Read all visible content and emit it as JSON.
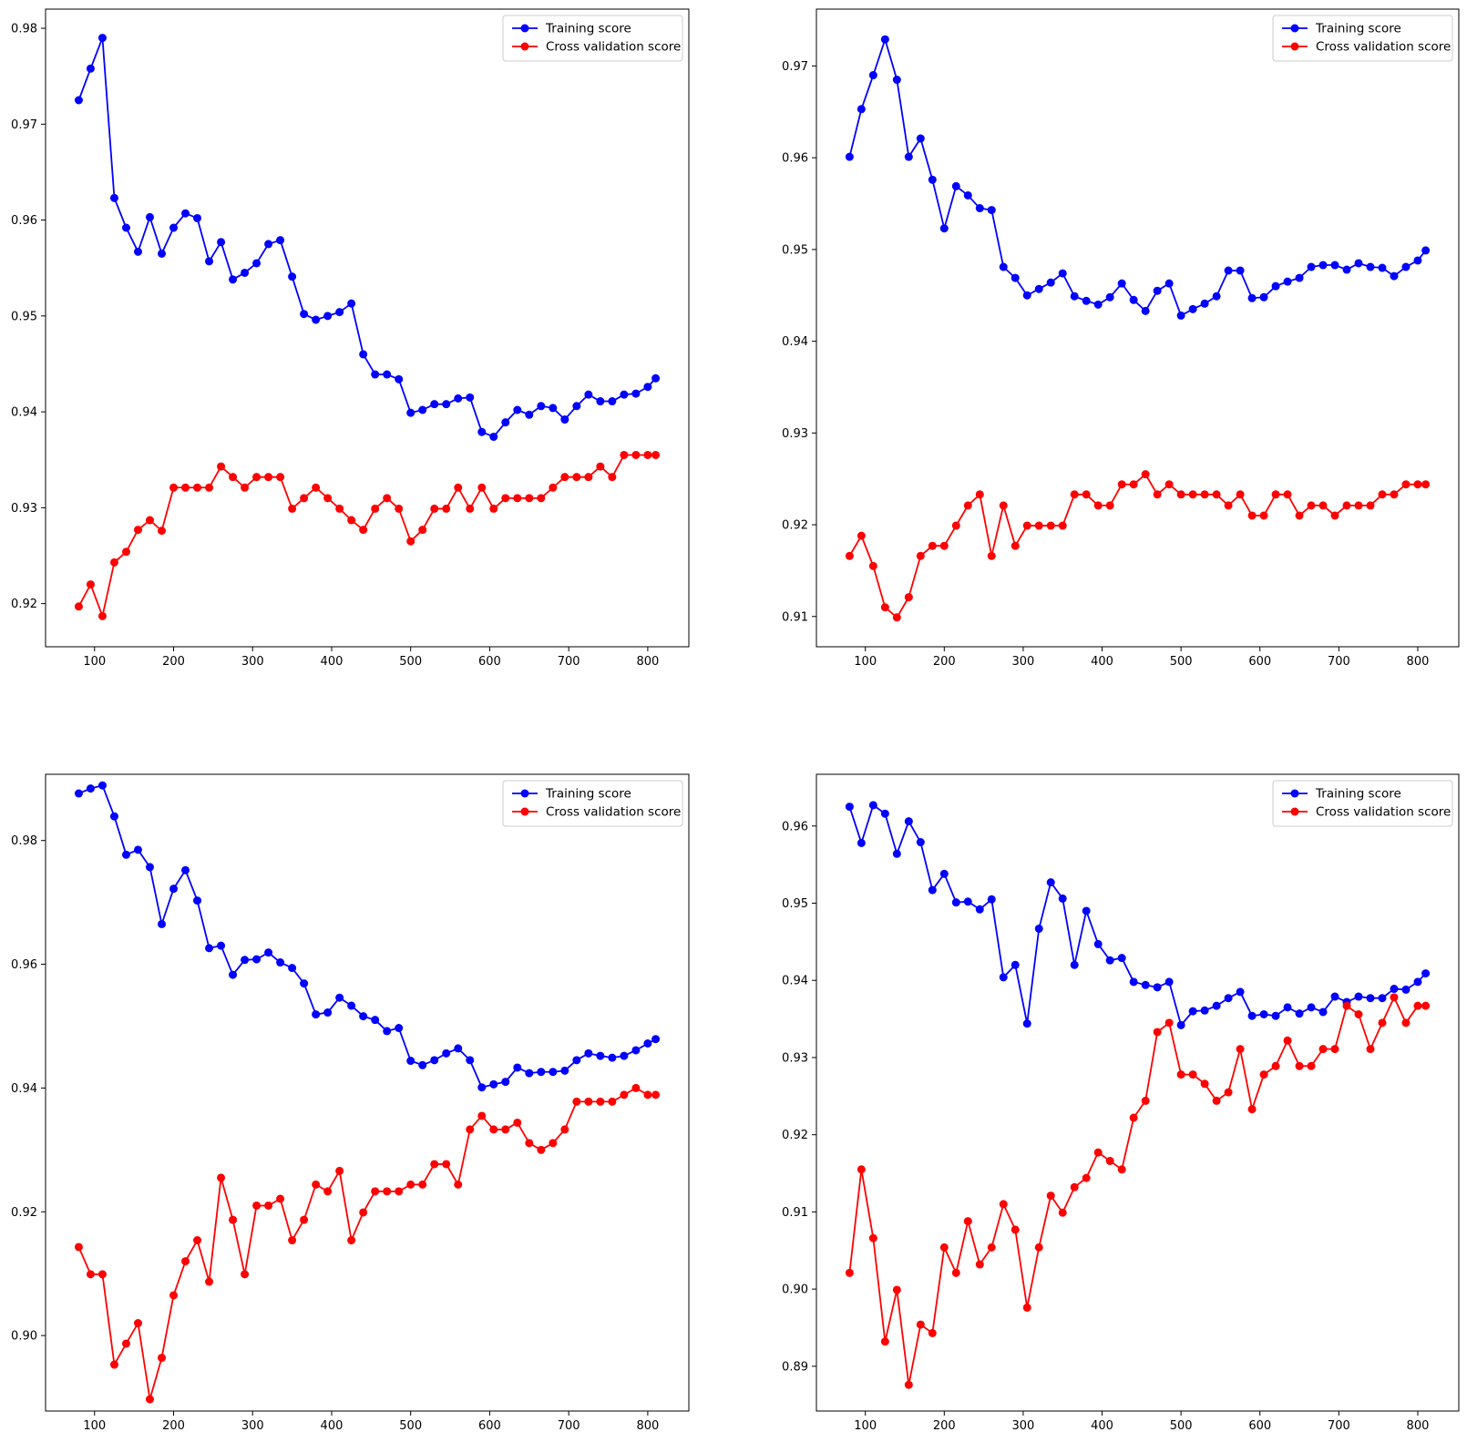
{
  "chart_data": [
    {
      "type": "line",
      "x": [
        80,
        95,
        110,
        125,
        140,
        155,
        170,
        185,
        200,
        215,
        230,
        245,
        260,
        275,
        290,
        305,
        320,
        335,
        350,
        365,
        380,
        395,
        410,
        425,
        440,
        455,
        470,
        485,
        500,
        515,
        530,
        545,
        560,
        575,
        590,
        605,
        620,
        635,
        650,
        665,
        680,
        695,
        710,
        725,
        740,
        755,
        770,
        785,
        800,
        810
      ],
      "series": [
        {
          "name": "Training score",
          "color": "#0000ff",
          "values": [
            0.9725,
            0.9758,
            0.979,
            0.9623,
            0.9592,
            0.9567,
            0.9603,
            0.9565,
            0.9592,
            0.9607,
            0.9602,
            0.9557,
            0.9577,
            0.9538,
            0.9545,
            0.9555,
            0.9575,
            0.9579,
            0.9541,
            0.9502,
            0.9496,
            0.95,
            0.9504,
            0.9513,
            0.946,
            0.9439,
            0.9439,
            0.9434,
            0.9399,
            0.9402,
            0.9408,
            0.9408,
            0.9414,
            0.9415,
            0.9379,
            0.9374,
            0.9389,
            0.9402,
            0.9397,
            0.9406,
            0.9404,
            0.9392,
            0.9406,
            0.9418,
            0.9411,
            0.9411,
            0.9418,
            0.9419,
            0.9426,
            0.9435
          ]
        },
        {
          "name": "Cross validation score",
          "color": "#ff0000",
          "values": [
            0.9197,
            0.922,
            0.9187,
            0.9243,
            0.9254,
            0.9277,
            0.9287,
            0.9276,
            0.9321,
            0.9321,
            0.9321,
            0.9321,
            0.9343,
            0.9332,
            0.9321,
            0.9332,
            0.9332,
            0.9332,
            0.9299,
            0.931,
            0.9321,
            0.931,
            0.9299,
            0.9287,
            0.9277,
            0.9299,
            0.931,
            0.9299,
            0.9265,
            0.9277,
            0.9299,
            0.9299,
            0.9321,
            0.9299,
            0.9321,
            0.9299,
            0.931,
            0.931,
            0.931,
            0.931,
            0.9321,
            0.9332,
            0.9332,
            0.9332,
            0.9343,
            0.9332,
            0.9355,
            0.9355,
            0.9355,
            0.9355
          ]
        }
      ],
      "xlim": [
        38,
        852
      ],
      "ylim": [
        0.9155,
        0.982
      ],
      "xticks": [
        100,
        200,
        300,
        400,
        500,
        600,
        700,
        800
      ],
      "xtick_labels": [
        "100",
        "200",
        "300",
        "400",
        "500",
        "600",
        "700",
        "800"
      ],
      "yticks": [
        0.92,
        0.93,
        0.94,
        0.95,
        0.96,
        0.97,
        0.98
      ],
      "ytick_labels": [
        "0.92",
        "0.93",
        "0.94",
        "0.95",
        "0.96",
        "0.97",
        "0.98"
      ],
      "legend": "upper right",
      "grid": false
    },
    {
      "type": "line",
      "x": [
        80,
        95,
        110,
        125,
        140,
        155,
        170,
        185,
        200,
        215,
        230,
        245,
        260,
        275,
        290,
        305,
        320,
        335,
        350,
        365,
        380,
        395,
        410,
        425,
        440,
        455,
        470,
        485,
        500,
        515,
        530,
        545,
        560,
        575,
        590,
        605,
        620,
        635,
        650,
        665,
        680,
        695,
        710,
        725,
        740,
        755,
        770,
        785,
        800,
        810
      ],
      "series": [
        {
          "name": "Training score",
          "color": "#0000ff",
          "values": [
            0.9601,
            0.9653,
            0.969,
            0.9729,
            0.9685,
            0.9601,
            0.9621,
            0.9576,
            0.9523,
            0.9569,
            0.9559,
            0.9545,
            0.9543,
            0.9481,
            0.9469,
            0.945,
            0.9457,
            0.9464,
            0.9474,
            0.9449,
            0.9444,
            0.944,
            0.9448,
            0.9463,
            0.9445,
            0.9433,
            0.9455,
            0.9463,
            0.9428,
            0.9435,
            0.9441,
            0.9449,
            0.9477,
            0.9477,
            0.9447,
            0.9448,
            0.946,
            0.9465,
            0.9469,
            0.9481,
            0.9483,
            0.9483,
            0.9478,
            0.9485,
            0.9481,
            0.948,
            0.9471,
            0.9481,
            0.9488,
            0.9499
          ]
        },
        {
          "name": "Cross validation score",
          "color": "#ff0000",
          "values": [
            0.9166,
            0.9188,
            0.9155,
            0.911,
            0.9099,
            0.9121,
            0.9166,
            0.9177,
            0.9177,
            0.9199,
            0.9221,
            0.9233,
            0.9166,
            0.9221,
            0.9177,
            0.9199,
            0.9199,
            0.9199,
            0.9199,
            0.9233,
            0.9233,
            0.9221,
            0.9221,
            0.9244,
            0.9244,
            0.9255,
            0.9233,
            0.9244,
            0.9233,
            0.9233,
            0.9233,
            0.9233,
            0.9221,
            0.9233,
            0.921,
            0.921,
            0.9233,
            0.9233,
            0.921,
            0.9221,
            0.9221,
            0.921,
            0.9221,
            0.9221,
            0.9221,
            0.9233,
            0.9233,
            0.9244,
            0.9244,
            0.9244
          ]
        }
      ],
      "xlim": [
        38,
        852
      ],
      "ylim": [
        0.9067,
        0.9762
      ],
      "xticks": [
        100,
        200,
        300,
        400,
        500,
        600,
        700,
        800
      ],
      "xtick_labels": [
        "100",
        "200",
        "300",
        "400",
        "500",
        "600",
        "700",
        "800"
      ],
      "yticks": [
        0.91,
        0.92,
        0.93,
        0.94,
        0.95,
        0.96,
        0.97
      ],
      "ytick_labels": [
        "0.91",
        "0.92",
        "0.93",
        "0.94",
        "0.95",
        "0.96",
        "0.97"
      ],
      "legend": "upper right",
      "grid": false
    },
    {
      "type": "line",
      "x": [
        80,
        95,
        110,
        125,
        140,
        155,
        170,
        185,
        200,
        215,
        230,
        245,
        260,
        275,
        290,
        305,
        320,
        335,
        350,
        365,
        380,
        395,
        410,
        425,
        440,
        455,
        470,
        485,
        500,
        515,
        530,
        545,
        560,
        575,
        590,
        605,
        620,
        635,
        650,
        665,
        680,
        695,
        710,
        725,
        740,
        755,
        770,
        785,
        800,
        810
      ],
      "series": [
        {
          "name": "Training score",
          "color": "#0000ff",
          "values": [
            0.9876,
            0.9884,
            0.9889,
            0.9839,
            0.9777,
            0.9785,
            0.9757,
            0.9665,
            0.9722,
            0.9752,
            0.9703,
            0.9626,
            0.963,
            0.9583,
            0.9607,
            0.9608,
            0.9619,
            0.9603,
            0.9594,
            0.9569,
            0.9519,
            0.9522,
            0.9546,
            0.9533,
            0.9516,
            0.951,
            0.9492,
            0.9497,
            0.9444,
            0.9437,
            0.9445,
            0.9456,
            0.9464,
            0.9445,
            0.9401,
            0.9406,
            0.941,
            0.9433,
            0.9424,
            0.9426,
            0.9426,
            0.9428,
            0.9445,
            0.9456,
            0.9452,
            0.9449,
            0.9452,
            0.9461,
            0.9472,
            0.9479
          ]
        },
        {
          "name": "Cross validation score",
          "color": "#ff0000",
          "values": [
            0.9143,
            0.9099,
            0.9099,
            0.8953,
            0.8987,
            0.902,
            0.8897,
            0.8964,
            0.9065,
            0.912,
            0.9154,
            0.9087,
            0.9255,
            0.9187,
            0.9099,
            0.921,
            0.921,
            0.9221,
            0.9154,
            0.9187,
            0.9244,
            0.9233,
            0.9266,
            0.9154,
            0.9199,
            0.9233,
            0.9233,
            0.9233,
            0.9244,
            0.9244,
            0.9277,
            0.9277,
            0.9244,
            0.9333,
            0.9355,
            0.9333,
            0.9333,
            0.9344,
            0.9311,
            0.93,
            0.9311,
            0.9333,
            0.9378,
            0.9378,
            0.9378,
            0.9378,
            0.9389,
            0.94,
            0.9389,
            0.9389
          ]
        }
      ],
      "xlim": [
        38,
        852
      ],
      "ylim": [
        0.8878,
        0.9907
      ],
      "xticks": [
        100,
        200,
        300,
        400,
        500,
        600,
        700,
        800
      ],
      "xtick_labels": [
        "100",
        "200",
        "300",
        "400",
        "500",
        "600",
        "700",
        "800"
      ],
      "yticks": [
        0.9,
        0.92,
        0.94,
        0.96,
        0.98
      ],
      "ytick_labels": [
        "0.90",
        "0.92",
        "0.94",
        "0.96",
        "0.98"
      ],
      "legend": "upper right",
      "grid": false
    },
    {
      "type": "line",
      "x": [
        80,
        95,
        110,
        125,
        140,
        155,
        170,
        185,
        200,
        215,
        230,
        245,
        260,
        275,
        290,
        305,
        320,
        335,
        350,
        365,
        380,
        395,
        410,
        425,
        440,
        455,
        470,
        485,
        500,
        515,
        530,
        545,
        560,
        575,
        590,
        605,
        620,
        635,
        650,
        665,
        680,
        695,
        710,
        725,
        740,
        755,
        770,
        785,
        800,
        810
      ],
      "series": [
        {
          "name": "Training score",
          "color": "#0000ff",
          "values": [
            0.9625,
            0.9578,
            0.9627,
            0.9616,
            0.9564,
            0.9606,
            0.9579,
            0.9517,
            0.9538,
            0.9501,
            0.9502,
            0.9492,
            0.9505,
            0.9404,
            0.942,
            0.9344,
            0.9467,
            0.9527,
            0.9506,
            0.942,
            0.949,
            0.9447,
            0.9426,
            0.9429,
            0.9398,
            0.9394,
            0.9391,
            0.9398,
            0.9342,
            0.936,
            0.9361,
            0.9367,
            0.9377,
            0.9385,
            0.9354,
            0.9356,
            0.9354,
            0.9365,
            0.9357,
            0.9365,
            0.9359,
            0.9379,
            0.9372,
            0.9379,
            0.9377,
            0.9377,
            0.9389,
            0.9388,
            0.9398,
            0.9409
          ]
        },
        {
          "name": "Cross validation score",
          "color": "#ff0000",
          "values": [
            0.9021,
            0.9155,
            0.9066,
            0.8932,
            0.8999,
            0.8876,
            0.8954,
            0.8943,
            0.9054,
            0.9021,
            0.9088,
            0.9032,
            0.9054,
            0.911,
            0.9077,
            0.8976,
            0.9054,
            0.9121,
            0.9099,
            0.9132,
            0.9144,
            0.9177,
            0.9166,
            0.9155,
            0.9222,
            0.9244,
            0.9333,
            0.9345,
            0.9278,
            0.9278,
            0.9266,
            0.9244,
            0.9255,
            0.9311,
            0.9233,
            0.9278,
            0.9289,
            0.9322,
            0.9289,
            0.9289,
            0.9311,
            0.9311,
            0.9367,
            0.9356,
            0.9311,
            0.9345,
            0.9378,
            0.9345,
            0.9367,
            0.9367
          ]
        }
      ],
      "xlim": [
        38,
        852
      ],
      "ylim": [
        0.8842,
        0.9667
      ],
      "xticks": [
        100,
        200,
        300,
        400,
        500,
        600,
        700,
        800
      ],
      "xtick_labels": [
        "100",
        "200",
        "300",
        "400",
        "500",
        "600",
        "700",
        "800"
      ],
      "yticks": [
        0.89,
        0.9,
        0.91,
        0.92,
        0.93,
        0.94,
        0.95,
        0.96
      ],
      "ytick_labels": [
        "0.89",
        "0.90",
        "0.91",
        "0.92",
        "0.93",
        "0.94",
        "0.95",
        "0.96"
      ],
      "legend": "upper right",
      "grid": false
    }
  ]
}
